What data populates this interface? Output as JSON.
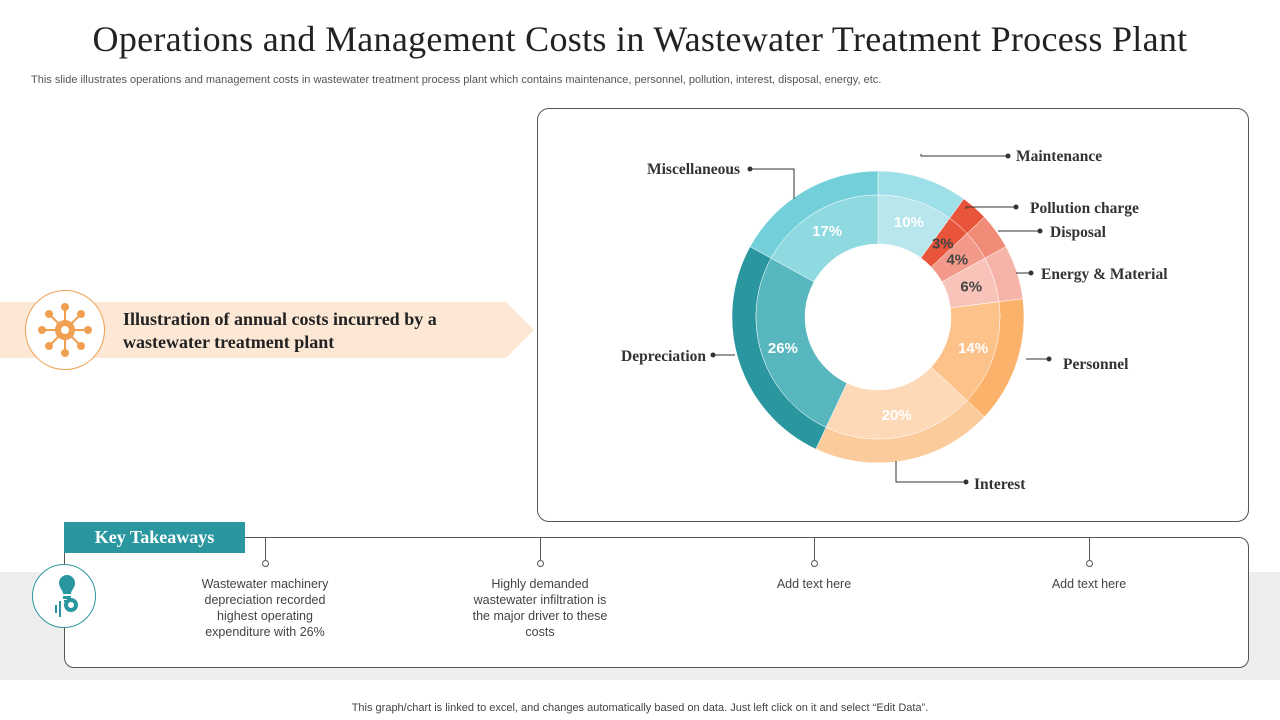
{
  "slide": {
    "title": "Operations and Management Costs in Wastewater Treatment Process Plant",
    "subtitle": "This slide illustrates operations and management costs in wastewater treatment process plant which contains maintenance, personnel, pollution, interest, disposal, energy, etc.",
    "banner_text": "Illustration of annual costs incurred by a wastewater treatment plant",
    "banner_icon": "gear-network-icon",
    "footer": "This graph/chart is linked to excel,  and changes automatically based on data. Just left click on it and select “Edit Data”."
  },
  "takeaways": {
    "label": "Key Takeaways",
    "icon": "lightbulb-gear-icon",
    "items": [
      "Wastewater machinery depreciation recorded highest operating expenditure with 26%",
      "Highly demanded wastewater infiltration is the major driver  to these costs",
      "Add text here",
      "Add text here"
    ]
  },
  "colors": {
    "teal_accent": "#2a97a0",
    "banner_fill": "#fde8d6",
    "banner_border": "#f0a050"
  },
  "chart_data": {
    "type": "pie",
    "donut": true,
    "title": "",
    "categories": [
      "Maintenance",
      "Pollution charge",
      "Disposal",
      "Energy & Material",
      "Personnel",
      "Interest",
      "Depreciation",
      "Miscellaneous"
    ],
    "values": [
      10,
      3,
      4,
      6,
      14,
      20,
      26,
      17
    ],
    "value_labels": [
      "10%",
      "3%",
      "4%",
      "6%",
      "14%",
      "20%",
      "26%",
      "17%"
    ],
    "colors": [
      "#b7e6ec",
      "#e8553b",
      "#f3998a",
      "#f8c4ba",
      "#fdc28a",
      "#fdd9b8",
      "#58b6be",
      "#8fd9e0"
    ],
    "outer_colors": [
      "#9fe0e8",
      "#e8553b",
      "#f08b78",
      "#f6b3a8",
      "#fbb36c",
      "#fccb9c",
      "#2a97a0",
      "#73d0da"
    ]
  }
}
